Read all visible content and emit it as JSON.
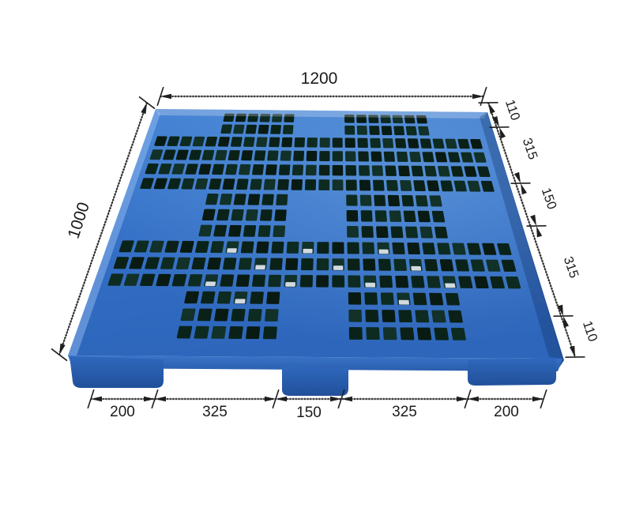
{
  "diagram": {
    "top_width": "1200",
    "left_depth": "1000",
    "right_segments": [
      "110",
      "315",
      "150",
      "315",
      "110"
    ],
    "bottom_segments": [
      "200",
      "325",
      "150",
      "325",
      "200"
    ],
    "colors": {
      "pallet_blue": "#3471c8",
      "pallet_blue_light": "#4c89d6",
      "pallet_blue_dark": "#27559e",
      "pallet_wall_dark": "#1f4c95",
      "hole_dark": "#0b2118",
      "dimension_line": "#1f1f1f",
      "text_color": "#1b1b1b",
      "background": "#ffffff"
    }
  }
}
